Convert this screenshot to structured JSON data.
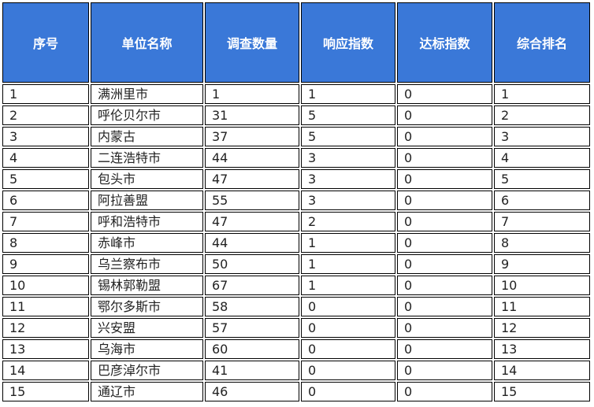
{
  "table": {
    "headers": [
      "序号",
      "单位名称",
      "调查数量",
      "响应指数",
      "达标指数",
      "综合排名"
    ],
    "rows": [
      [
        "1",
        "满洲里市",
        "1",
        "1",
        "0",
        "1"
      ],
      [
        "2",
        "呼伦贝尔市",
        "31",
        "5",
        "0",
        "2"
      ],
      [
        "3",
        "内蒙古",
        "37",
        "5",
        "0",
        "3"
      ],
      [
        "4",
        "二连浩特市",
        "44",
        "3",
        "0",
        "4"
      ],
      [
        "5",
        "包头市",
        "47",
        "3",
        "0",
        "5"
      ],
      [
        "6",
        "阿拉善盟",
        "55",
        "3",
        "0",
        "6"
      ],
      [
        "7",
        "呼和浩特市",
        "47",
        "2",
        "0",
        "7"
      ],
      [
        "8",
        "赤峰市",
        "44",
        "1",
        "0",
        "8"
      ],
      [
        "9",
        "乌兰察布市",
        "50",
        "1",
        "0",
        "9"
      ],
      [
        "10",
        "锡林郭勒盟",
        "67",
        "1",
        "0",
        "10"
      ],
      [
        "11",
        "鄂尔多斯市",
        "58",
        "0",
        "0",
        "11"
      ],
      [
        "12",
        "兴安盟",
        "57",
        "0",
        "0",
        "12"
      ],
      [
        "13",
        "乌海市",
        "60",
        "0",
        "0",
        "13"
      ],
      [
        "14",
        "巴彦淖尔市",
        "41",
        "0",
        "0",
        "14"
      ],
      [
        "15",
        "通辽市",
        "46",
        "0",
        "0",
        "15"
      ]
    ],
    "header_color": "#3a78d8"
  }
}
